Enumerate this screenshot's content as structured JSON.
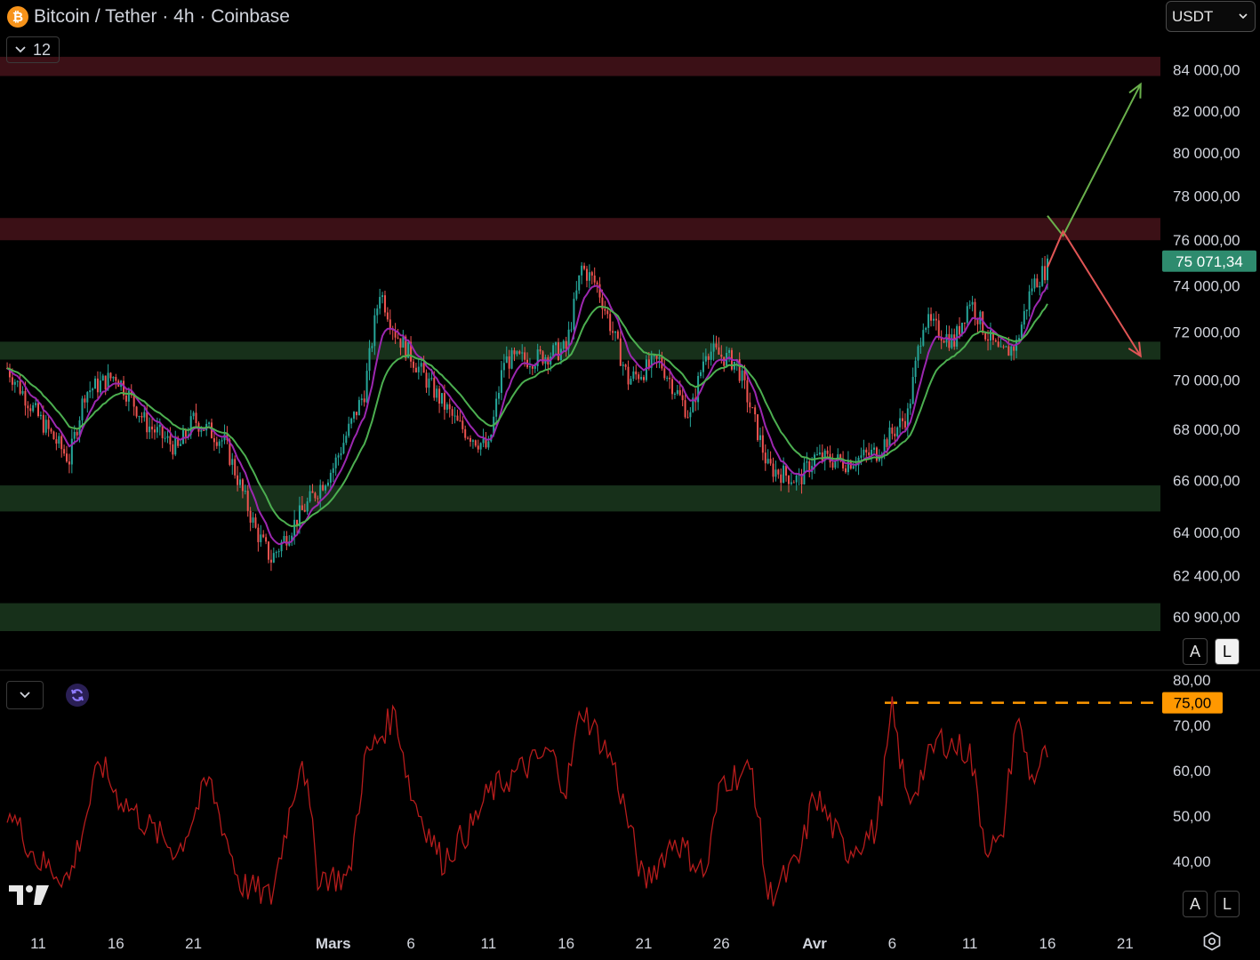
{
  "header": {
    "title": "Bitcoin / Tether · 4h · Coinbase",
    "symbol_icon": "bitcoin-icon",
    "interval_badge": "12",
    "currency": "USDT"
  },
  "colors": {
    "background": "#000000",
    "resistance_zone": "#3b1016",
    "support_zone": "#17301a",
    "candle_up": "#26a69a",
    "candle_down": "#ef5350",
    "ma_fast": "#9c27b0",
    "ma_slow": "#4caf50",
    "price_label": "#2e8b6e",
    "rsi_line": "#b71c1c",
    "rsi_level": "#ff9800",
    "arrow_up": "#6ab04c",
    "arrow_down": "#e05555"
  },
  "scale_buttons": [
    "A",
    "L"
  ],
  "chart_data": [
    {
      "type": "candlestick",
      "title": "",
      "price_axis_ticks": [
        "84 000,00",
        "82 000,00",
        "80 000,00",
        "78 000,00",
        "76 000,00",
        "74 000,00",
        "72 000,00",
        "70 000,00",
        "68 000,00",
        "66 000,00",
        "64 000,00",
        "62 400,00",
        "60 900,00"
      ],
      "price_axis_values": [
        84000,
        82000,
        80000,
        78000,
        76000,
        74000,
        72000,
        70000,
        68000,
        66000,
        64000,
        62400,
        60900
      ],
      "scale": "log",
      "ylim": [
        60400,
        85000
      ],
      "time_axis_ticks": [
        "11",
        "16",
        "21",
        "Mars",
        "6",
        "11",
        "16",
        "21",
        "26",
        "Avr",
        "6",
        "11",
        "16",
        "21"
      ],
      "time_axis_dates": [
        "2024-02-11",
        "2024-02-16",
        "2024-02-21",
        "2024-03-01",
        "2024-03-06",
        "2024-03-11",
        "2024-03-16",
        "2024-03-21",
        "2024-03-26",
        "2024-04-01",
        "2024-04-06",
        "2024-04-11",
        "2024-04-16",
        "2024-04-21"
      ],
      "close_series_4h": {
        "dates": [
          "2024-02-09",
          "2024-02-11",
          "2024-02-13",
          "2024-02-14",
          "2024-02-16",
          "2024-02-18",
          "2024-02-20",
          "2024-02-21",
          "2024-02-23",
          "2024-02-25",
          "2024-02-26",
          "2024-02-28",
          "2024-03-01",
          "2024-03-03",
          "2024-03-04",
          "2024-03-05",
          "2024-03-07",
          "2024-03-09",
          "2024-03-11",
          "2024-03-12",
          "2024-03-14",
          "2024-03-16",
          "2024-03-17",
          "2024-03-18",
          "2024-03-20",
          "2024-03-22",
          "2024-03-24",
          "2024-03-25",
          "2024-03-27",
          "2024-03-29",
          "2024-03-31",
          "2024-04-01",
          "2024-04-03",
          "2024-04-05",
          "2024-04-07",
          "2024-04-08",
          "2024-04-10",
          "2024-04-11",
          "2024-04-12",
          "2024-04-13",
          "2024-04-14",
          "2024-04-15",
          "2024-04-16"
        ],
        "values": [
          70500,
          68500,
          66800,
          69500,
          70200,
          68200,
          67200,
          68400,
          67500,
          64100,
          63000,
          64800,
          66500,
          69500,
          73800,
          72000,
          70000,
          68200,
          67200,
          70800,
          70900,
          71300,
          74800,
          74000,
          70000,
          70800,
          68500,
          71300,
          70700,
          66500,
          66000,
          66900,
          66700,
          67100,
          68600,
          72500,
          71600,
          73400,
          72000,
          71000,
          71500,
          74000,
          74800
        ]
      },
      "last_price": "75 071,34",
      "moving_averages": [
        {
          "color": "#9c27b0"
        },
        {
          "color": "#4caf50"
        }
      ],
      "resistance_zones": [
        [
          83700,
          84650
        ],
        [
          76000,
          77000
        ]
      ],
      "support_zones": [
        [
          70850,
          71600
        ],
        [
          64800,
          65800
        ],
        [
          60400,
          61400
        ]
      ],
      "projection_arrows": [
        {
          "direction": "up",
          "from": [
            "2024-04-16",
            77100
          ],
          "via": [
            "2024-04-17",
            76200
          ],
          "to": [
            "2024-04-22",
            83300
          ]
        },
        {
          "direction": "down",
          "from": [
            "2024-04-16",
            74800
          ],
          "via": [
            "2024-04-17",
            76400
          ],
          "to": [
            "2024-04-22",
            71000
          ]
        }
      ]
    },
    {
      "type": "line",
      "title": "",
      "axis_ticks": [
        "80,00",
        "70,00",
        "60,00",
        "50,00",
        "40,00"
      ],
      "axis_values": [
        80,
        70,
        60,
        50,
        40
      ],
      "ylim": [
        26,
        82
      ],
      "level_label": "75,00",
      "level": 75,
      "x": [
        "2024-02-09",
        "2024-02-11",
        "2024-02-13",
        "2024-02-15",
        "2024-02-16",
        "2024-02-18",
        "2024-02-20",
        "2024-02-22",
        "2024-02-24",
        "2024-02-26",
        "2024-02-28",
        "2024-02-29",
        "2024-03-02",
        "2024-03-03",
        "2024-03-05",
        "2024-03-06",
        "2024-03-08",
        "2024-03-10",
        "2024-03-11",
        "2024-03-13",
        "2024-03-15",
        "2024-03-16",
        "2024-03-17",
        "2024-03-19",
        "2024-03-21",
        "2024-03-23",
        "2024-03-25",
        "2024-03-26",
        "2024-03-28",
        "2024-03-29",
        "2024-03-31",
        "2024-04-01",
        "2024-04-03",
        "2024-04-05",
        "2024-04-06",
        "2024-04-07",
        "2024-04-09",
        "2024-04-11",
        "2024-04-12",
        "2024-04-13",
        "2024-04-14",
        "2024-04-15",
        "2024-04-16"
      ],
      "values": [
        52,
        40,
        36,
        62,
        55,
        48,
        42,
        58,
        35,
        32,
        64,
        37,
        36,
        62,
        73,
        55,
        40,
        48,
        55,
        60,
        64,
        56,
        74,
        62,
        35,
        45,
        37,
        58,
        60,
        32,
        40,
        55,
        42,
        47,
        73,
        53,
        67,
        64,
        44,
        43,
        72,
        58,
        64
      ]
    }
  ]
}
